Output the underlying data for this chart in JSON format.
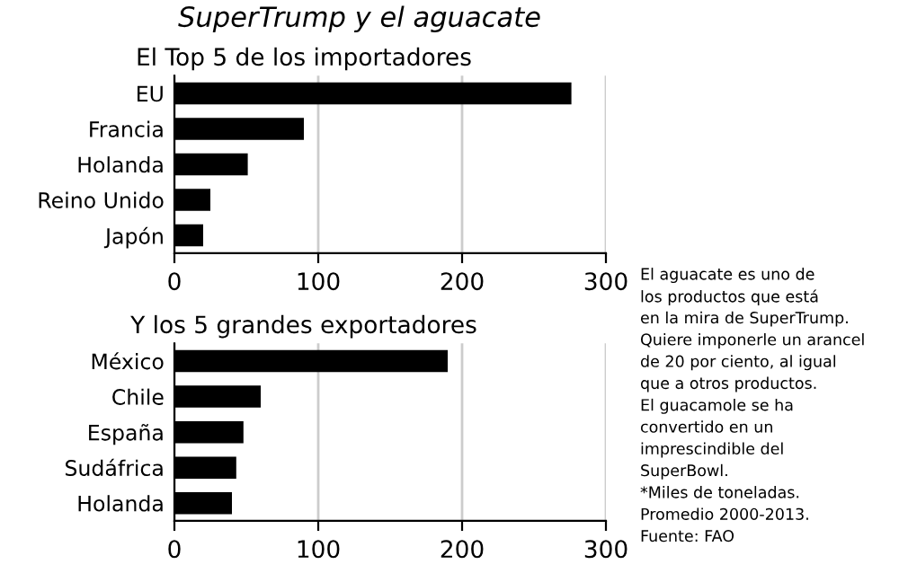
{
  "chart_data": [
    {
      "type": "bar",
      "orientation": "horizontal",
      "title": "SuperTrump y el aguacate",
      "subtitle": "El Top 5 de los importadores",
      "categories": [
        "EU",
        "Francia",
        "Holanda",
        "Reino Unido",
        "Japón"
      ],
      "series": [
        {
          "color": "#000000",
          "values": [
            276,
            90,
            51,
            25,
            20
          ]
        }
      ],
      "xlim": [
        0,
        300
      ],
      "xticks": [
        0,
        100,
        200,
        300
      ],
      "grid": "x"
    },
    {
      "type": "bar",
      "orientation": "horizontal",
      "title": "Y los 5 grandes exportadores",
      "categories": [
        "México",
        "Chile",
        "España",
        "Sudáfrica",
        "Holanda"
      ],
      "series": [
        {
          "color": "#000000",
          "values": [
            190,
            60,
            48,
            43,
            40
          ]
        }
      ],
      "xlim": [
        0,
        300
      ],
      "xticks": [
        0,
        100,
        200,
        300
      ],
      "grid": "x",
      "annotations": [
        "El aguacate es uno de",
        "los productos que está",
        "en la mira de SuperTrump.",
        "Quiere imponerle un arancel",
        "de 20 por ciento, al igual",
        "que a otros productos.",
        "El guacamole se ha",
        "convertido en un",
        "imprescindible del",
        "SuperBowl.",
        "*Miles de toneladas.",
        "Promedio 2000-2013.",
        "Fuente: FAO"
      ]
    }
  ]
}
